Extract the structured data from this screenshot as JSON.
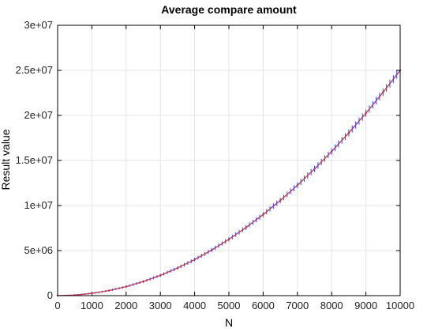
{
  "chart_data": {
    "type": "line",
    "title": "Average compare amount",
    "xlabel": "N",
    "ylabel": "Result value",
    "xlim": [
      0,
      10000
    ],
    "ylim": [
      0,
      30000000
    ],
    "x_ticks": [
      0,
      1000,
      2000,
      3000,
      4000,
      5000,
      6000,
      7000,
      8000,
      9000,
      10000
    ],
    "x_tick_labels": [
      "0",
      "1000",
      "2000",
      "3000",
      "4000",
      "5000",
      "6000",
      "7000",
      "8000",
      "9000",
      "10000"
    ],
    "y_ticks": [
      0,
      5000000,
      10000000,
      15000000,
      20000000,
      25000000,
      30000000
    ],
    "y_tick_labels": [
      "0",
      "5e+06",
      "1e+07",
      "1.5e+07",
      "2e+07",
      "2.5e+07",
      "3e+07"
    ],
    "grid": true,
    "colors": {
      "line": "#c0304f",
      "error_bars": "#1f4fff",
      "grid": "#e4e4e4",
      "axes": "#000000"
    },
    "series": [
      {
        "x": [
          0,
          500,
          1000,
          1500,
          2000,
          2500,
          3000,
          3500,
          4000,
          4500,
          5000,
          5500,
          6000,
          6500,
          7000,
          7500,
          8000,
          8500,
          9000,
          9500,
          10000
        ],
        "values": [
          0,
          62500,
          250000,
          562500,
          1000000,
          1562500,
          2250000,
          3062500,
          4000000,
          5062500,
          6250000,
          7562500,
          9000000,
          10562500,
          12250000,
          14062500,
          16000000,
          18062500,
          20250000,
          22562500,
          25000000
        ]
      }
    ]
  }
}
